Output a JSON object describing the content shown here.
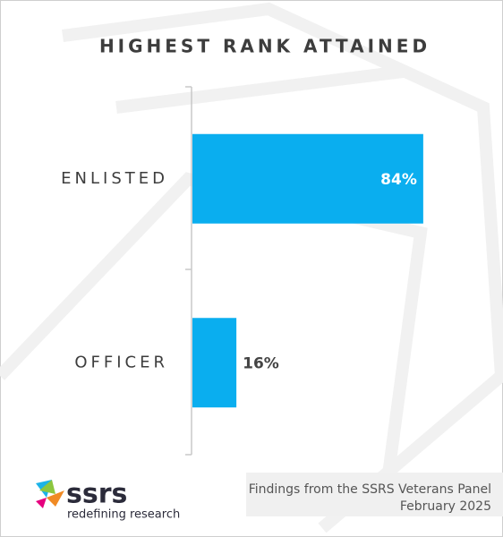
{
  "chart_data": {
    "type": "hbar",
    "title": "HIGHEST RANK ATTAINED",
    "categories": [
      "ENLISTED",
      "OFFICER"
    ],
    "values": [
      84,
      16
    ],
    "value_labels": [
      "84%",
      "16%"
    ],
    "color": "#0aaeef"
  },
  "footer": {
    "line1": "Findings from the SSRS Veterans Panel",
    "line2": "February 2025"
  },
  "logo": {
    "name": "ssrs",
    "tagline": "redefining research"
  }
}
